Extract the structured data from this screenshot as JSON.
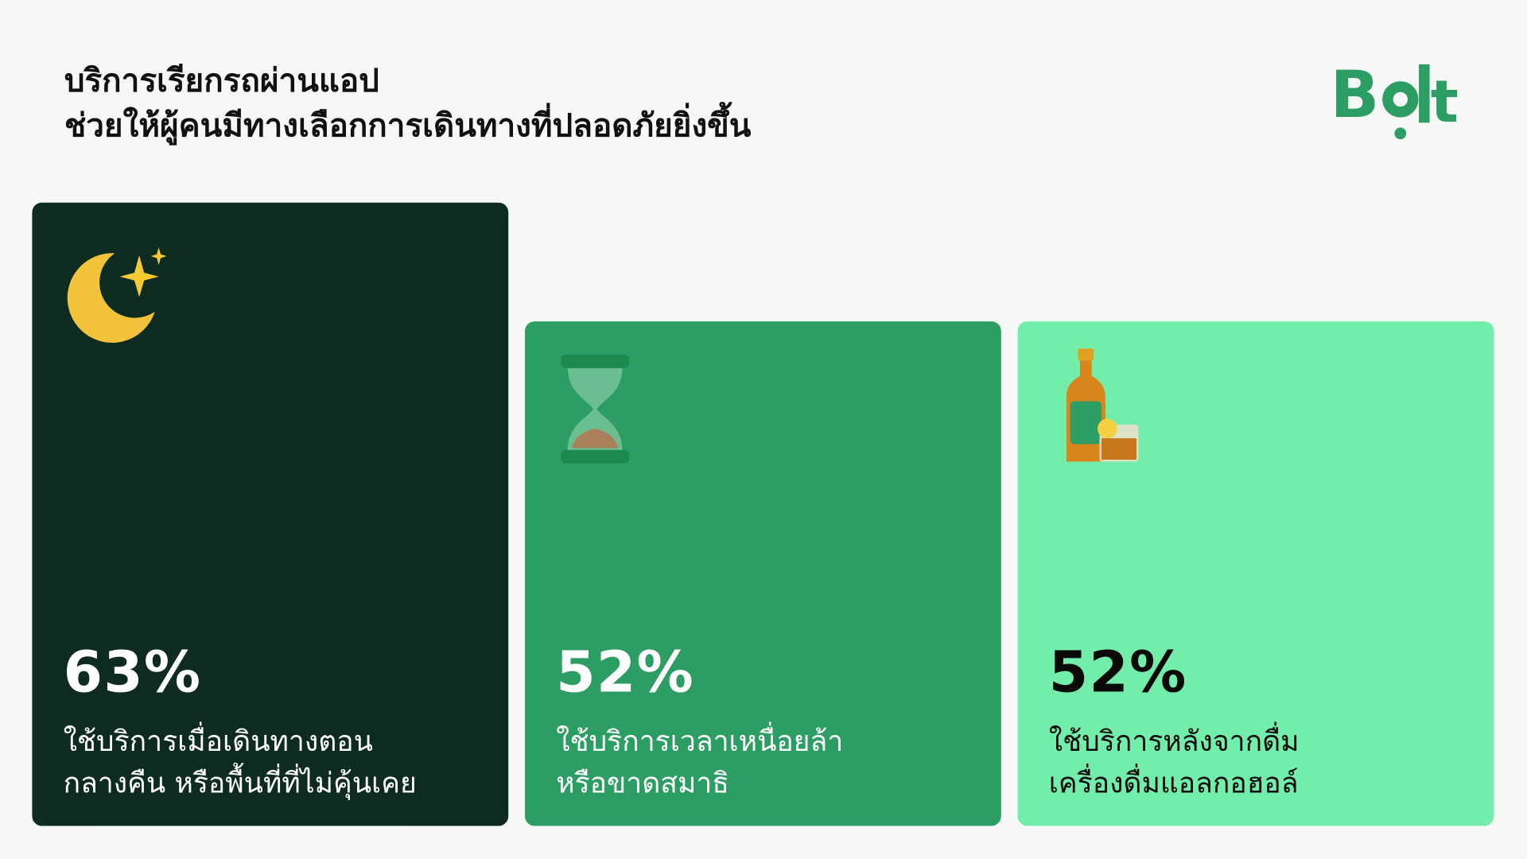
{
  "header": {
    "title_line1": "บริการเรียกรถผ่านแอป",
    "title_line2": "ช่วยให้ผู้คนมีทางเลือกการเดินทางที่ปลอดภัยยิ่งขึ้น",
    "logo_text": "Bolt"
  },
  "colors": {
    "brand": "#2c9e63",
    "card1": "#0d2b1e",
    "card2": "#2c9e63",
    "card3": "#72eeaa",
    "background": "#f5f8f7"
  },
  "cards": [
    {
      "icon": "moon-stars-icon",
      "percent": "63%",
      "line1": "ใช้บริการเมื่อเดินทางตอน",
      "line2": "กลางคืน หรือพื้นที่ที่ไม่คุ้นเคย"
    },
    {
      "icon": "hourglass-icon",
      "percent": "52%",
      "line1": "ใช้บริการเวลาเหนื่อยล้า",
      "line2": "หรือขาดสมาธิ"
    },
    {
      "icon": "liquor-bottle-glass-icon",
      "percent": "52%",
      "line1": "ใช้บริการหลังจากดื่ม",
      "line2": "เครื่องดื่มแอลกอฮอล์"
    }
  ]
}
